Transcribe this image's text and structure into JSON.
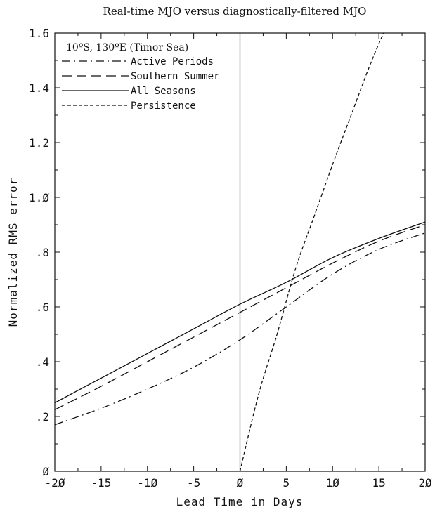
{
  "chart_data": {
    "type": "line",
    "title": "Real-time MJO versus diagnostically-filtered MJO",
    "xlabel": "Lead Time in Days",
    "ylabel": "Normalized RMS error",
    "xlim": [
      -20,
      20
    ],
    "ylim": [
      0,
      1.6
    ],
    "xticks": [
      -20,
      -15,
      -10,
      -5,
      0,
      5,
      10,
      15,
      20
    ],
    "xtick_labels": [
      "-2Ø",
      "-15",
      "-1Ø",
      "-5",
      "Ø",
      "5",
      "1Ø",
      "15",
      "2Ø"
    ],
    "yticks": [
      0,
      0.2,
      0.4,
      0.6,
      0.8,
      1.0,
      1.2,
      1.4,
      1.6
    ],
    "ytick_labels": [
      "Ø",
      ".2",
      ".4",
      ".6",
      ".8",
      "1.Ø",
      "1.2",
      "1.4",
      "1.6"
    ],
    "grid": false,
    "legend_title": "10ºS, 130ºE (Timor Sea)",
    "legend_position": "top-left",
    "vertical_reference_line_x": 0,
    "series": [
      {
        "name": "Active Periods",
        "style": "dash-dot",
        "x": [
          -20,
          -15,
          -10,
          -5,
          0,
          5,
          10,
          15,
          20
        ],
        "y": [
          0.17,
          0.23,
          0.3,
          0.38,
          0.48,
          0.6,
          0.72,
          0.81,
          0.87
        ]
      },
      {
        "name": "Southern Summer",
        "style": "long-dash",
        "x": [
          -20,
          -15,
          -10,
          -5,
          0,
          5,
          10,
          15,
          20
        ],
        "y": [
          0.225,
          0.31,
          0.4,
          0.49,
          0.58,
          0.67,
          0.76,
          0.84,
          0.9
        ]
      },
      {
        "name": "All Seasons",
        "style": "solid",
        "x": [
          -20,
          -15,
          -10,
          -5,
          0,
          5,
          10,
          15,
          20
        ],
        "y": [
          0.25,
          0.34,
          0.43,
          0.52,
          0.61,
          0.69,
          0.78,
          0.85,
          0.91
        ]
      },
      {
        "name": "Persistence",
        "style": "short-dash",
        "x": [
          0,
          2,
          4,
          6,
          8,
          10,
          12,
          14,
          15.5
        ],
        "y": [
          0,
          0.28,
          0.5,
          0.74,
          0.93,
          1.12,
          1.3,
          1.48,
          1.6
        ]
      }
    ]
  }
}
